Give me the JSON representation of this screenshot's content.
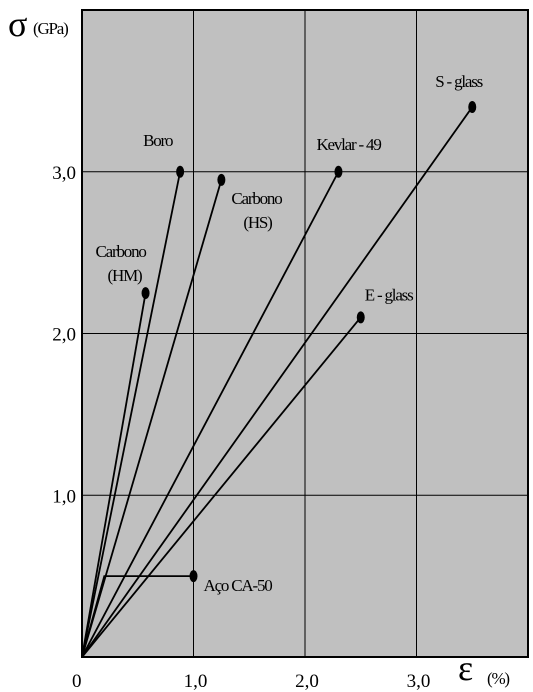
{
  "chart_data": {
    "type": "line",
    "xlabel_symbol": "ε",
    "xlabel_unit": "(%)",
    "ylabel_symbol": "σ",
    "ylabel_unit": "(GPa)",
    "xlim": [
      0,
      4.0
    ],
    "ylim": [
      0,
      4.0
    ],
    "grid": true,
    "background": "#c0c0c0",
    "line_color": "#000000",
    "x_ticks": [
      {
        "value": 0,
        "label": "0"
      },
      {
        "value": 1.0,
        "label": "1,0"
      },
      {
        "value": 2.0,
        "label": "2,0"
      },
      {
        "value": 3.0,
        "label": "3,0"
      }
    ],
    "y_ticks": [
      {
        "value": 1.0,
        "label": "1,0"
      },
      {
        "value": 2.0,
        "label": "2,0"
      },
      {
        "value": 3.0,
        "label": "3,0"
      }
    ],
    "series": [
      {
        "name": "Boro",
        "points": [
          [
            0,
            0
          ],
          [
            0.88,
            3.0
          ]
        ]
      },
      {
        "name": "Carbono (HM)",
        "points": [
          [
            0,
            0
          ],
          [
            0.57,
            2.25
          ]
        ]
      },
      {
        "name": "Carbono (HS)",
        "points": [
          [
            0,
            0
          ],
          [
            1.25,
            2.95
          ]
        ]
      },
      {
        "name": "Kevlar - 49",
        "points": [
          [
            0,
            0
          ],
          [
            2.3,
            3.0
          ]
        ]
      },
      {
        "name": "S - glass",
        "points": [
          [
            0,
            0
          ],
          [
            3.5,
            3.4
          ]
        ]
      },
      {
        "name": "E - glass",
        "points": [
          [
            0,
            0
          ],
          [
            2.5,
            2.1
          ]
        ]
      },
      {
        "name": "Aço CA-50",
        "points": [
          [
            0,
            0
          ],
          [
            0.2,
            0.5
          ],
          [
            1.0,
            0.5
          ]
        ]
      }
    ],
    "annotations": [
      {
        "series": "Boro",
        "lines": [
          "Boro"
        ]
      },
      {
        "series": "Carbono (HM)",
        "lines": [
          "Carbono",
          "(HM)"
        ]
      },
      {
        "series": "Carbono (HS)",
        "lines": [
          "Carbono",
          "(HS)"
        ]
      },
      {
        "series": "Kevlar - 49",
        "lines": [
          "Kevlar - 49"
        ]
      },
      {
        "series": "S - glass",
        "lines": [
          "S - glass"
        ]
      },
      {
        "series": "E - glass",
        "lines": [
          "E - glass"
        ]
      },
      {
        "series": "Aço CA-50",
        "lines": [
          "Aço CA-50"
        ]
      }
    ]
  }
}
